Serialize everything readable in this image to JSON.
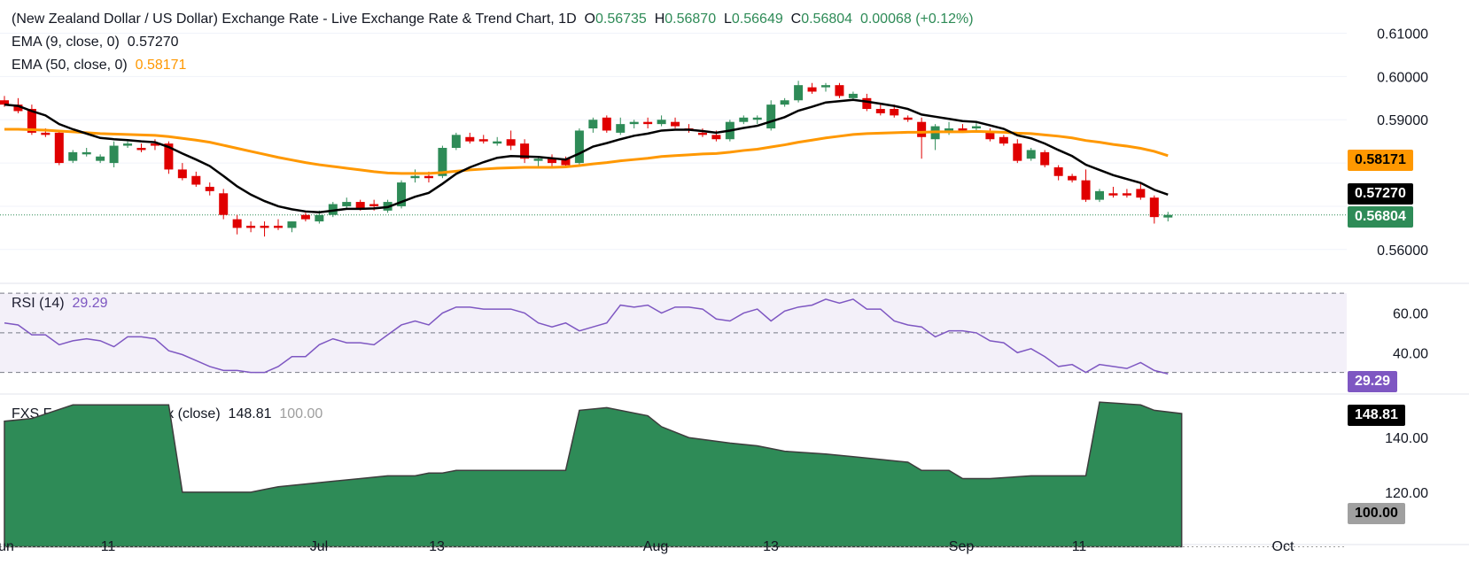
{
  "header": {
    "title": "(New Zealand Dollar / US Dollar) Exchange Rate - Live Exchange Rate & Trend Chart, 1D",
    "o_label": "O",
    "o_value": "0.56735",
    "h_label": "H",
    "h_value": "0.56870",
    "l_label": "L",
    "l_value": "0.56649",
    "c_label": "C",
    "c_value": "0.56804",
    "change": "0.00068 (+0.12%)"
  },
  "ema9": {
    "label": "EMA (9, close, 0)",
    "value": "0.57270"
  },
  "ema50": {
    "label": "EMA (50, close, 0)",
    "value": "0.58171"
  },
  "rsi": {
    "label": "RSI (14)",
    "value": "29.29"
  },
  "fxs": {
    "label": "FXS Fed Sentiment Index (close)",
    "value": "148.81",
    "base": "100.00"
  },
  "price_tags": {
    "ema50": "0.58171",
    "ema9": "0.57270",
    "last": "0.56804",
    "rsi": "29.29",
    "fxs": "148.81",
    "fxs_base": "100.00"
  },
  "colors": {
    "up": "#2e8b57",
    "down": "#e00000",
    "ema9": "#000000",
    "ema50": "#ff9800",
    "rsi": "#7e57c2",
    "fxs_fill": "#2e8b57"
  },
  "chart_data": [
    {
      "type": "candlestick",
      "title": "(New Zealand Dollar / US Dollar) Exchange Rate - Live Exchange Rate & Trend Chart, 1D",
      "x_ticks": [
        "Jun",
        "11",
        "Jul",
        "13",
        "Aug",
        "13",
        "Sep",
        "11",
        "Oct"
      ],
      "y_ticks": [
        "0.61000",
        "0.60000",
        "0.59000",
        "0.56000"
      ],
      "ylim": [
        0.553,
        0.614
      ],
      "ohlc": [
        [
          0.5945,
          0.5955,
          0.593,
          0.5935
        ],
        [
          0.5935,
          0.595,
          0.5915,
          0.592
        ],
        [
          0.5925,
          0.5935,
          0.5865,
          0.587
        ],
        [
          0.587,
          0.588,
          0.586,
          0.5865
        ],
        [
          0.587,
          0.5875,
          0.5795,
          0.58
        ],
        [
          0.5805,
          0.583,
          0.58,
          0.5825
        ],
        [
          0.582,
          0.5835,
          0.5815,
          0.5825
        ],
        [
          0.5805,
          0.582,
          0.58,
          0.5815
        ],
        [
          0.58,
          0.585,
          0.579,
          0.584
        ],
        [
          0.584,
          0.585,
          0.5835,
          0.5845
        ],
        [
          0.5835,
          0.5845,
          0.5825,
          0.583
        ],
        [
          0.5845,
          0.5855,
          0.583,
          0.584
        ],
        [
          0.5845,
          0.585,
          0.5775,
          0.5785
        ],
        [
          0.5785,
          0.58,
          0.576,
          0.5765
        ],
        [
          0.577,
          0.578,
          0.5745,
          0.575
        ],
        [
          0.5745,
          0.5755,
          0.5725,
          0.5735
        ],
        [
          0.573,
          0.574,
          0.567,
          0.568
        ],
        [
          0.567,
          0.568,
          0.5635,
          0.565
        ],
        [
          0.5655,
          0.5665,
          0.564,
          0.565
        ],
        [
          0.5655,
          0.5665,
          0.563,
          0.565
        ],
        [
          0.5655,
          0.567,
          0.5645,
          0.565
        ],
        [
          0.565,
          0.5665,
          0.564,
          0.5665
        ],
        [
          0.568,
          0.5685,
          0.5665,
          0.567
        ],
        [
          0.5665,
          0.569,
          0.566,
          0.568
        ],
        [
          0.568,
          0.571,
          0.5675,
          0.5705
        ],
        [
          0.57,
          0.572,
          0.5695,
          0.571
        ],
        [
          0.571,
          0.5715,
          0.569,
          0.5695
        ],
        [
          0.5705,
          0.5715,
          0.569,
          0.57
        ],
        [
          0.569,
          0.5715,
          0.5685,
          0.571
        ],
        [
          0.57,
          0.576,
          0.5695,
          0.5755
        ],
        [
          0.5765,
          0.5785,
          0.5755,
          0.577
        ],
        [
          0.577,
          0.578,
          0.5755,
          0.5765
        ],
        [
          0.577,
          0.584,
          0.5765,
          0.5835
        ],
        [
          0.5835,
          0.587,
          0.583,
          0.5865
        ],
        [
          0.586,
          0.587,
          0.5845,
          0.585
        ],
        [
          0.5855,
          0.5865,
          0.5845,
          0.585
        ],
        [
          0.5845,
          0.586,
          0.584,
          0.585
        ],
        [
          0.5855,
          0.5875,
          0.583,
          0.584
        ],
        [
          0.5845,
          0.5855,
          0.58,
          0.581
        ],
        [
          0.5805,
          0.5815,
          0.579,
          0.581
        ],
        [
          0.581,
          0.582,
          0.579,
          0.58
        ],
        [
          0.581,
          0.5815,
          0.579,
          0.5795
        ],
        [
          0.58,
          0.588,
          0.5795,
          0.5875
        ],
        [
          0.588,
          0.5905,
          0.587,
          0.59
        ],
        [
          0.5905,
          0.591,
          0.587,
          0.5875
        ],
        [
          0.587,
          0.5905,
          0.5865,
          0.589
        ],
        [
          0.589,
          0.59,
          0.588,
          0.5895
        ],
        [
          0.5895,
          0.5905,
          0.588,
          0.589
        ],
        [
          0.589,
          0.591,
          0.5885,
          0.59
        ],
        [
          0.5895,
          0.5905,
          0.588,
          0.5885
        ],
        [
          0.588,
          0.589,
          0.587,
          0.5875
        ],
        [
          0.587,
          0.588,
          0.586,
          0.5865
        ],
        [
          0.5865,
          0.5875,
          0.585,
          0.5855
        ],
        [
          0.5855,
          0.59,
          0.585,
          0.5895
        ],
        [
          0.5895,
          0.591,
          0.589,
          0.5905
        ],
        [
          0.59,
          0.591,
          0.589,
          0.5905
        ],
        [
          0.588,
          0.5945,
          0.5875,
          0.5935
        ],
        [
          0.5935,
          0.595,
          0.593,
          0.5945
        ],
        [
          0.5945,
          0.599,
          0.594,
          0.598
        ],
        [
          0.5975,
          0.5985,
          0.596,
          0.5965
        ],
        [
          0.5975,
          0.5985,
          0.5965,
          0.598
        ],
        [
          0.598,
          0.5985,
          0.595,
          0.5955
        ],
        [
          0.595,
          0.5965,
          0.5945,
          0.596
        ],
        [
          0.595,
          0.596,
          0.592,
          0.5925
        ],
        [
          0.5925,
          0.5935,
          0.591,
          0.5915
        ],
        [
          0.5925,
          0.5935,
          0.5905,
          0.591
        ],
        [
          0.5905,
          0.591,
          0.5895,
          0.59
        ],
        [
          0.5895,
          0.5905,
          0.581,
          0.586
        ],
        [
          0.5855,
          0.589,
          0.583,
          0.5885
        ],
        [
          0.5875,
          0.5895,
          0.5865,
          0.588
        ],
        [
          0.588,
          0.589,
          0.587,
          0.5875
        ],
        [
          0.588,
          0.5895,
          0.587,
          0.5885
        ],
        [
          0.587,
          0.588,
          0.585,
          0.5855
        ],
        [
          0.586,
          0.5865,
          0.584,
          0.5845
        ],
        [
          0.5845,
          0.5855,
          0.58,
          0.5805
        ],
        [
          0.581,
          0.5835,
          0.5805,
          0.583
        ],
        [
          0.5825,
          0.583,
          0.579,
          0.5795
        ],
        [
          0.579,
          0.5795,
          0.576,
          0.577
        ],
        [
          0.577,
          0.5775,
          0.5755,
          0.576
        ],
        [
          0.576,
          0.5785,
          0.571,
          0.5715
        ],
        [
          0.5715,
          0.574,
          0.571,
          0.5735
        ],
        [
          0.573,
          0.5745,
          0.572,
          0.5725
        ],
        [
          0.573,
          0.574,
          0.572,
          0.5725
        ],
        [
          0.574,
          0.5755,
          0.5715,
          0.572
        ],
        [
          0.572,
          0.5725,
          0.566,
          0.5675
        ],
        [
          0.5674,
          0.5687,
          0.5665,
          0.568
        ]
      ],
      "ema9": [
        0.5935,
        0.5932,
        0.592,
        0.591,
        0.589,
        0.5878,
        0.5868,
        0.5858,
        0.5855,
        0.5853,
        0.585,
        0.5848,
        0.5837,
        0.5822,
        0.5808,
        0.5793,
        0.577,
        0.5746,
        0.5727,
        0.5712,
        0.57,
        0.5693,
        0.5688,
        0.5686,
        0.569,
        0.5694,
        0.5694,
        0.5695,
        0.5698,
        0.571,
        0.5722,
        0.5731,
        0.5752,
        0.5775,
        0.579,
        0.5802,
        0.5812,
        0.5816,
        0.5815,
        0.5814,
        0.5811,
        0.5808,
        0.5822,
        0.5838,
        0.5846,
        0.5855,
        0.5863,
        0.5868,
        0.5875,
        0.5877,
        0.5877,
        0.5874,
        0.587,
        0.5875,
        0.5881,
        0.5886,
        0.5896,
        0.5906,
        0.5921,
        0.593,
        0.594,
        0.5943,
        0.5946,
        0.5942,
        0.5937,
        0.5932,
        0.5925,
        0.5912,
        0.5907,
        0.5902,
        0.5897,
        0.5895,
        0.5887,
        0.5879,
        0.5864,
        0.5857,
        0.5845,
        0.583,
        0.5816,
        0.5796,
        0.5784,
        0.5772,
        0.5763,
        0.5754,
        0.5738,
        0.5727
      ],
      "ema50": [
        0.5878,
        0.5878,
        0.5877,
        0.5876,
        0.5874,
        0.5872,
        0.587,
        0.5868,
        0.5867,
        0.5866,
        0.5865,
        0.5864,
        0.5861,
        0.5857,
        0.5853,
        0.5848,
        0.5841,
        0.5834,
        0.5827,
        0.582,
        0.5813,
        0.5807,
        0.5801,
        0.5796,
        0.5792,
        0.5788,
        0.5784,
        0.578,
        0.5777,
        0.5776,
        0.5776,
        0.5776,
        0.5778,
        0.5781,
        0.5784,
        0.5786,
        0.5788,
        0.5789,
        0.579,
        0.579,
        0.579,
        0.5791,
        0.5794,
        0.5798,
        0.5801,
        0.5805,
        0.5808,
        0.5811,
        0.5815,
        0.5817,
        0.5819,
        0.5821,
        0.5822,
        0.5825,
        0.5829,
        0.5832,
        0.5837,
        0.5842,
        0.5848,
        0.5853,
        0.5858,
        0.5862,
        0.5866,
        0.5868,
        0.5869,
        0.587,
        0.5871,
        0.5871,
        0.5872,
        0.5872,
        0.5872,
        0.5873,
        0.5872,
        0.5871,
        0.5869,
        0.5868,
        0.5865,
        0.5862,
        0.5858,
        0.5852,
        0.5848,
        0.5843,
        0.5839,
        0.5834,
        0.5827,
        0.5817
      ]
    },
    {
      "type": "line",
      "title": "RSI (14)",
      "y_ticks": [
        "60.00",
        "40.00"
      ],
      "ylim": [
        20,
        75
      ],
      "guides": [
        70,
        50,
        30
      ],
      "values": [
        55,
        54,
        49,
        49,
        44,
        46,
        47,
        46,
        43,
        48,
        48,
        47,
        41,
        39,
        36,
        33,
        31,
        31,
        30,
        30,
        33,
        38,
        38,
        44,
        47,
        45,
        45,
        44,
        49,
        54,
        56,
        54,
        60,
        63,
        63,
        62,
        62,
        62,
        60,
        55,
        53,
        55,
        51,
        53,
        55,
        64,
        63,
        64,
        60,
        63,
        63,
        62,
        57,
        56,
        60,
        62,
        56,
        61,
        63,
        64,
        67,
        65,
        67,
        62,
        62,
        56,
        54,
        53,
        48,
        51,
        51,
        50,
        46,
        45,
        40,
        42,
        38,
        33,
        34,
        30,
        34,
        33,
        32,
        35,
        31,
        29.29
      ]
    },
    {
      "type": "area",
      "title": "FXS Fed Sentiment Index (close)",
      "y_ticks": [
        "140.00",
        "120.00",
        "100.00"
      ],
      "ylim": [
        94,
        155
      ],
      "values": [
        [
          0,
          146
        ],
        [
          2,
          147
        ],
        [
          5,
          152
        ],
        [
          11,
          152
        ],
        [
          12,
          152
        ],
        [
          13,
          120
        ],
        [
          18,
          120
        ],
        [
          19,
          121
        ],
        [
          20,
          122
        ],
        [
          22,
          123
        ],
        [
          24,
          124
        ],
        [
          26,
          125
        ],
        [
          28,
          126
        ],
        [
          30,
          126
        ],
        [
          31,
          127
        ],
        [
          32,
          127
        ],
        [
          33,
          128
        ],
        [
          37,
          128
        ],
        [
          41,
          128
        ],
        [
          42,
          150
        ],
        [
          44,
          151
        ],
        [
          47,
          148
        ],
        [
          48,
          144
        ],
        [
          50,
          140
        ],
        [
          53,
          138
        ],
        [
          55,
          137
        ],
        [
          57,
          135
        ],
        [
          60,
          134
        ],
        [
          62,
          133
        ],
        [
          64,
          132
        ],
        [
          66,
          131
        ],
        [
          67,
          128
        ],
        [
          69,
          128
        ],
        [
          70,
          125
        ],
        [
          72,
          125
        ],
        [
          75,
          126
        ],
        [
          76,
          126
        ],
        [
          79,
          126
        ],
        [
          80,
          153
        ],
        [
          83,
          152
        ],
        [
          84,
          150
        ],
        [
          86,
          148.81
        ]
      ]
    }
  ]
}
